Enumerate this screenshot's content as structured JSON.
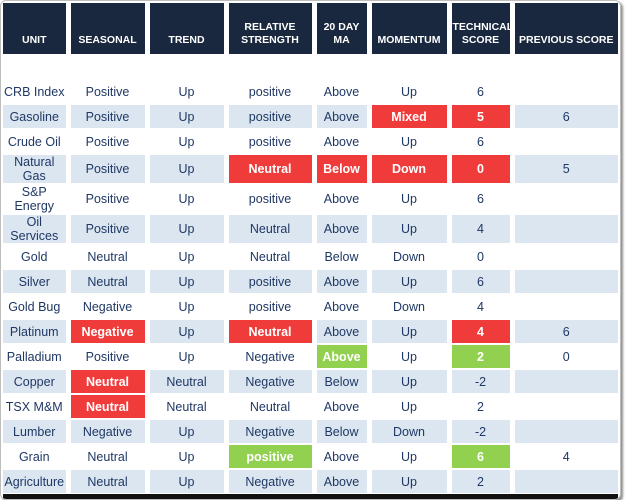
{
  "colors": {
    "header_bg": "#19283F",
    "header_text": "#FFFFFF",
    "body_text": "#1F3864",
    "row_alt_bg": "#DCE6F1",
    "highlight_red": "#F03B3B",
    "highlight_green": "#92D050",
    "bottom_bar": "#111111"
  },
  "chart_data": {
    "type": "table",
    "columns": [
      "UNIT",
      "SEASONAL",
      "TREND",
      "RELATIVE STRENGTH",
      "20 DAY MA",
      "MOMENTUM",
      "TECHNICAL SCORE",
      "PREVIOUS SCORE"
    ],
    "rows": [
      [
        {
          "t": "CRB Index"
        },
        {
          "t": "Positive"
        },
        {
          "t": "Up"
        },
        {
          "t": "positive"
        },
        {
          "t": "Above"
        },
        {
          "t": "Up"
        },
        {
          "t": "6"
        },
        {
          "t": ""
        }
      ],
      [
        {
          "t": "Gasoline"
        },
        {
          "t": "Positive"
        },
        {
          "t": "Up"
        },
        {
          "t": "positive"
        },
        {
          "t": "Above"
        },
        {
          "t": "Mixed",
          "h": "red"
        },
        {
          "t": "5",
          "h": "red"
        },
        {
          "t": "6"
        }
      ],
      [
        {
          "t": "Crude Oil"
        },
        {
          "t": "Positive"
        },
        {
          "t": "Up"
        },
        {
          "t": "positive"
        },
        {
          "t": "Above"
        },
        {
          "t": "Up"
        },
        {
          "t": "6"
        },
        {
          "t": ""
        }
      ],
      [
        {
          "t": "Natural Gas"
        },
        {
          "t": "Positive"
        },
        {
          "t": "Up"
        },
        {
          "t": "Neutral",
          "h": "red"
        },
        {
          "t": "Below",
          "h": "red"
        },
        {
          "t": "Down",
          "h": "red"
        },
        {
          "t": "0",
          "h": "red"
        },
        {
          "t": "5"
        }
      ],
      [
        {
          "t": "S&P Energy"
        },
        {
          "t": "Positive"
        },
        {
          "t": "Up"
        },
        {
          "t": "positive"
        },
        {
          "t": "Above"
        },
        {
          "t": "Up"
        },
        {
          "t": "6"
        },
        {
          "t": ""
        }
      ],
      [
        {
          "t": "Oil Services"
        },
        {
          "t": "Positive"
        },
        {
          "t": "Up"
        },
        {
          "t": "Neutral"
        },
        {
          "t": "Above"
        },
        {
          "t": "Up"
        },
        {
          "t": "4"
        },
        {
          "t": ""
        }
      ],
      [
        {
          "t": "Gold"
        },
        {
          "t": "Neutral"
        },
        {
          "t": "Up"
        },
        {
          "t": "Neutral"
        },
        {
          "t": "Below"
        },
        {
          "t": "Down"
        },
        {
          "t": "0"
        },
        {
          "t": ""
        }
      ],
      [
        {
          "t": "Silver"
        },
        {
          "t": "Neutral"
        },
        {
          "t": "Up"
        },
        {
          "t": "positive"
        },
        {
          "t": "Above"
        },
        {
          "t": "Up"
        },
        {
          "t": "6"
        },
        {
          "t": ""
        }
      ],
      [
        {
          "t": "Gold Bug"
        },
        {
          "t": "Negative"
        },
        {
          "t": "Up"
        },
        {
          "t": "positive"
        },
        {
          "t": "Above"
        },
        {
          "t": "Down"
        },
        {
          "t": "4"
        },
        {
          "t": ""
        }
      ],
      [
        {
          "t": "Platinum"
        },
        {
          "t": "Negative",
          "h": "red"
        },
        {
          "t": "Up"
        },
        {
          "t": "Neutral",
          "h": "red"
        },
        {
          "t": "Above"
        },
        {
          "t": "Up"
        },
        {
          "t": "4",
          "h": "red"
        },
        {
          "t": "6"
        }
      ],
      [
        {
          "t": "Palladium"
        },
        {
          "t": "Positive"
        },
        {
          "t": "Up"
        },
        {
          "t": "Negative"
        },
        {
          "t": "Above",
          "h": "green"
        },
        {
          "t": "Up"
        },
        {
          "t": "2",
          "h": "green"
        },
        {
          "t": "0"
        }
      ],
      [
        {
          "t": "Copper"
        },
        {
          "t": "Neutral",
          "h": "red"
        },
        {
          "t": "Neutral"
        },
        {
          "t": "Negative"
        },
        {
          "t": "Below"
        },
        {
          "t": "Up"
        },
        {
          "t": "-2"
        },
        {
          "t": ""
        }
      ],
      [
        {
          "t": "TSX M&M"
        },
        {
          "t": "Neutral",
          "h": "red"
        },
        {
          "t": "Neutral"
        },
        {
          "t": "Neutral"
        },
        {
          "t": "Above"
        },
        {
          "t": "Up"
        },
        {
          "t": "2"
        },
        {
          "t": ""
        }
      ],
      [
        {
          "t": "Lumber"
        },
        {
          "t": "Negative"
        },
        {
          "t": "Up"
        },
        {
          "t": "Negative"
        },
        {
          "t": "Below"
        },
        {
          "t": "Down"
        },
        {
          "t": "-2"
        },
        {
          "t": ""
        }
      ],
      [
        {
          "t": "Grain"
        },
        {
          "t": "Neutral"
        },
        {
          "t": "Up"
        },
        {
          "t": "positive",
          "h": "green"
        },
        {
          "t": "Above"
        },
        {
          "t": "Up"
        },
        {
          "t": "6",
          "h": "green"
        },
        {
          "t": "4"
        }
      ],
      [
        {
          "t": "Agriculture"
        },
        {
          "t": "Neutral"
        },
        {
          "t": "Up"
        },
        {
          "t": "Negative"
        },
        {
          "t": "Above"
        },
        {
          "t": "Up"
        },
        {
          "t": "2"
        },
        {
          "t": ""
        }
      ]
    ]
  }
}
